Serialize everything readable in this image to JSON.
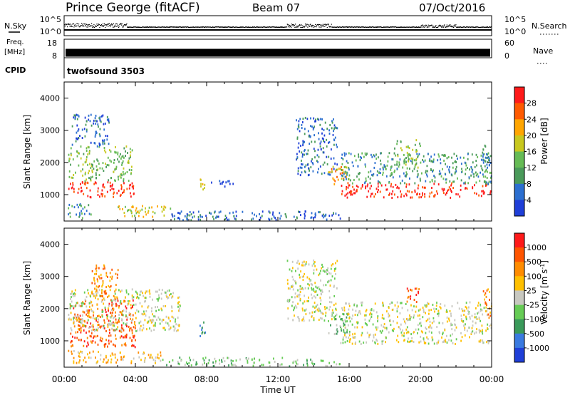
{
  "header": {
    "station": "Prince George (fitACF)",
    "beam": "Beam 07",
    "date": "07/Oct/2016"
  },
  "noise_panel": {
    "left_label": "N.Sky",
    "right_label": "N.Search",
    "left_ticks": [
      "10^5",
      "10^0"
    ],
    "right_ticks": [
      "10^5",
      "10^0"
    ]
  },
  "freq_panel": {
    "left_label_line1": "Freq.",
    "left_label_line2": "[MHz]",
    "right_label": "Nave",
    "left_ticks": [
      "18",
      "8"
    ],
    "right_ticks": [
      "60",
      "0"
    ],
    "frequency_mhz": 10.5
  },
  "cpid": {
    "label": "CPID",
    "value": "twofsound 3503"
  },
  "colors": {
    "power": [
      "#1f3fd8",
      "#2c6fd0",
      "#4a9a5a",
      "#66bb55",
      "#c8c81e",
      "#ffa500",
      "#ff5a00",
      "#ff1a1a"
    ],
    "velocity": [
      "#1f3fd8",
      "#3a7ae0",
      "#3a9a5a",
      "#66cc55",
      "#c8c8c0",
      "#ffc000",
      "#ff8c00",
      "#ff5500",
      "#ff1a1a"
    ]
  },
  "chart_data": [
    {
      "type": "heatmap",
      "name": "power",
      "ylabel": "Slant Range [km]",
      "ylim": [
        180,
        4500
      ],
      "yticks": [
        1000,
        2000,
        3000,
        4000
      ],
      "xlim_hours": [
        0,
        24
      ],
      "colorbar": {
        "label": "Power [dB]",
        "tick_labels": [
          "4",
          "8",
          "12",
          "16",
          "20",
          "24",
          "28"
        ],
        "range": [
          0,
          32
        ]
      },
      "regions": [
        {
          "t0": 0.2,
          "t1": 4.0,
          "r0": 900,
          "r1": 1400,
          "level": 7
        },
        {
          "t0": 0.2,
          "t1": 3.8,
          "r0": 1400,
          "r1": 2500,
          "level": 3
        },
        {
          "t0": 0.4,
          "t1": 2.5,
          "r0": 2500,
          "r1": 3500,
          "level": 1
        },
        {
          "t0": 0.2,
          "t1": 1.5,
          "r0": 250,
          "r1": 700,
          "level": 2
        },
        {
          "t0": 3.0,
          "t1": 6.0,
          "r0": 300,
          "r1": 650,
          "level": 4
        },
        {
          "t0": 6.0,
          "t1": 15.5,
          "r0": 200,
          "r1": 480,
          "level": 1
        },
        {
          "t0": 7.6,
          "t1": 7.9,
          "r0": 1100,
          "r1": 1700,
          "level": 5
        },
        {
          "t0": 8.2,
          "t1": 9.5,
          "r0": 1250,
          "r1": 1450,
          "level": 0
        },
        {
          "t0": 13.0,
          "t1": 15.3,
          "r0": 1600,
          "r1": 3400,
          "level": 1
        },
        {
          "t0": 14.8,
          "t1": 16.0,
          "r0": 1300,
          "r1": 1900,
          "level": 5
        },
        {
          "t0": 15.5,
          "t1": 24.0,
          "r0": 900,
          "r1": 1350,
          "level": 7
        },
        {
          "t0": 15.5,
          "t1": 24.0,
          "r0": 1350,
          "r1": 2300,
          "level": 2
        },
        {
          "t0": 18.5,
          "t1": 20.0,
          "r0": 1800,
          "r1": 2700,
          "level": 3
        },
        {
          "t0": 23.4,
          "t1": 24.0,
          "r0": 1300,
          "r1": 2600,
          "level": 2
        }
      ]
    },
    {
      "type": "heatmap",
      "name": "velocity",
      "ylabel": "Slant Range [km]",
      "ylim": [
        180,
        4500
      ],
      "yticks": [
        1000,
        2000,
        3000,
        4000
      ],
      "xlim_hours": [
        0,
        24
      ],
      "xlabel": "Time UT",
      "xtick_labels": [
        "00:00",
        "04:00",
        "08:00",
        "12:00",
        "16:00",
        "20:00",
        "00:00"
      ],
      "colorbar": {
        "label": "Velocity [m s^-1]",
        "tick_labels": [
          "1000",
          "500",
          "100",
          "25",
          "-25",
          "-100",
          "-500",
          "-1000"
        ]
      },
      "regions": [
        {
          "t0": 0.3,
          "t1": 4.0,
          "r0": 800,
          "r1": 2300,
          "level": 7
        },
        {
          "t0": 0.2,
          "t1": 6.5,
          "r0": 1300,
          "r1": 2600,
          "level": 4
        },
        {
          "t0": 1.5,
          "t1": 3.0,
          "r0": 2300,
          "r1": 3400,
          "level": 6
        },
        {
          "t0": 0.2,
          "t1": 5.5,
          "r0": 300,
          "r1": 700,
          "level": 5
        },
        {
          "t0": 5.5,
          "t1": 15.5,
          "r0": 180,
          "r1": 480,
          "level": 3
        },
        {
          "t0": 7.6,
          "t1": 7.9,
          "r0": 1100,
          "r1": 1700,
          "level": 1
        },
        {
          "t0": 12.5,
          "t1": 15.3,
          "r0": 1600,
          "r1": 3500,
          "level": 4
        },
        {
          "t0": 14.8,
          "t1": 16.0,
          "r0": 1200,
          "r1": 1900,
          "level": 3
        },
        {
          "t0": 15.5,
          "t1": 24.0,
          "r0": 900,
          "r1": 2200,
          "level": 4
        },
        {
          "t0": 19.2,
          "t1": 20.0,
          "r0": 2200,
          "r1": 2700,
          "level": 7
        },
        {
          "t0": 23.5,
          "t1": 24.0,
          "r0": 1700,
          "r1": 2600,
          "level": 6
        }
      ]
    }
  ]
}
